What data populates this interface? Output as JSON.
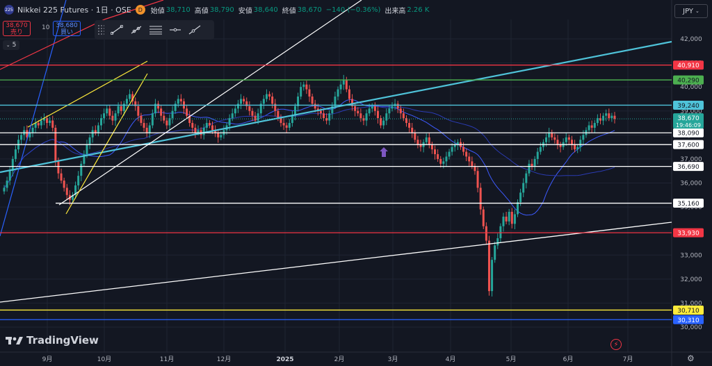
{
  "header": {
    "symbol_icon": "225",
    "title": "Nikkei 225 Futures · 1日 · OSE",
    "timeframe_badge": "D",
    "open_label": "始値",
    "open_value": "38,710",
    "high_label": "高値",
    "high_value": "38,790",
    "low_label": "安値",
    "low_value": "38,640",
    "close_label": "終値",
    "close_value": "38,670",
    "change": "−140 (−0.36%)",
    "volume_label": "出来高",
    "volume_value": "2.26 K"
  },
  "trade": {
    "sell_price": "38,670",
    "sell_label": "売り",
    "spread": "10",
    "buy_price": "38,680",
    "buy_label": "買い",
    "indicators_collapsed_count": "5"
  },
  "currency": "JPY",
  "brand": "TradingView",
  "chart_data": {
    "type": "candlestick",
    "y_axis": {
      "range": [
        29800,
        42700
      ],
      "ticks": [
        42000,
        41000,
        40000,
        39000,
        38000,
        37000,
        36000,
        35000,
        34000,
        33000,
        32000,
        31000,
        30000
      ],
      "tick_labels": [
        "42,000",
        "41,000",
        "40,000",
        "39,000",
        "38,000",
        "37,000",
        "36,000",
        "35,000",
        "34,000",
        "33,000",
        "32,000",
        "31,000",
        "30,000"
      ]
    },
    "x_axis": {
      "labels": [
        "9月",
        "10月",
        "11月",
        "12月",
        "2025",
        "2月",
        "3月",
        "4月",
        "5月",
        "6月",
        "7月"
      ]
    },
    "horizontal_levels": [
      {
        "value": 40910,
        "label": "40,910",
        "color": "#f23645"
      },
      {
        "value": 40290,
        "label": "40,290",
        "color": "#4caf50"
      },
      {
        "value": 39240,
        "label": "39,240",
        "color": "#4fc3d9"
      },
      {
        "value": 38090,
        "label": "38,090",
        "color": "#ffffff"
      },
      {
        "value": 37600,
        "label": "37,600",
        "color": "#ffffff"
      },
      {
        "value": 36690,
        "label": "36,690",
        "color": "#ffffff"
      },
      {
        "value": 35160,
        "label": "35,160",
        "color": "#ffffff"
      },
      {
        "value": 33930,
        "label": "33,930",
        "color": "#f23645"
      },
      {
        "value": 30710,
        "label": "30,710",
        "color": "#ffeb3b"
      },
      {
        "value": 30310,
        "label": "30,310",
        "color": "#2962ff"
      }
    ],
    "last_price": {
      "value": 38670,
      "label": "38,670",
      "countdown": "19:46:09",
      "color": "#26a69a"
    },
    "closes": [
      35800,
      36100,
      36500,
      37000,
      37400,
      37800,
      38000,
      38200,
      37900,
      38100,
      38300,
      38500,
      38400,
      38600,
      38700,
      38500,
      38600,
      38300,
      36900,
      36400,
      36100,
      35800,
      35500,
      35300,
      35500,
      35900,
      36300,
      36800,
      37200,
      37600,
      37900,
      38200,
      38100,
      38400,
      38700,
      38900,
      39100,
      38800,
      38600,
      38900,
      39200,
      39000,
      39300,
      39500,
      39700,
      39400,
      39200,
      38800,
      38500,
      38300,
      38100,
      38400,
      38900,
      39300,
      39100,
      38800,
      38600,
      38400,
      38700,
      39000,
      39300,
      39500,
      39400,
      39100,
      38800,
      38500,
      38300,
      38100,
      38200,
      38000,
      38300,
      38500,
      38400,
      38200,
      38100,
      37900,
      38000,
      38200,
      38400,
      38700,
      38900,
      39100,
      39300,
      39500,
      39400,
      39200,
      39000,
      38800,
      38600,
      38900,
      39300,
      39500,
      39700,
      39600,
      39300,
      39000,
      38700,
      38500,
      38400,
      38300,
      38500,
      38800,
      39200,
      39600,
      40000,
      40100,
      39900,
      39600,
      39300,
      39100,
      39000,
      38900,
      38700,
      38600,
      38900,
      39200,
      39600,
      39900,
      40100,
      40300,
      39900,
      39500,
      39200,
      39000,
      38900,
      38700,
      38600,
      38900,
      39100,
      39200,
      39000,
      38700,
      38400,
      38600,
      38900,
      39100,
      39200,
      39300,
      39100,
      38900,
      38700,
      38500,
      38300,
      38100,
      37800,
      37600,
      37500,
      37700,
      37900,
      37600,
      37400,
      37200,
      37000,
      36800,
      36900,
      37100,
      37300,
      37500,
      37600,
      37700,
      37500,
      37300,
      37100,
      36900,
      36700,
      36500,
      35800,
      34900,
      34200,
      33600,
      31500,
      32800,
      33400,
      33700,
      34200,
      34600,
      34400,
      34800,
      34300,
      34700,
      35200,
      35600,
      36000,
      36400,
      36800,
      36700,
      37000,
      37300,
      37500,
      37700,
      37900,
      38100,
      37900,
      37800,
      37600,
      37500,
      37700,
      37900,
      37800,
      37600,
      37400,
      37500,
      37800,
      38000,
      38200,
      38400,
      38300,
      38500,
      38700,
      38600,
      38800,
      38900,
      38700,
      38800,
      38670
    ]
  }
}
